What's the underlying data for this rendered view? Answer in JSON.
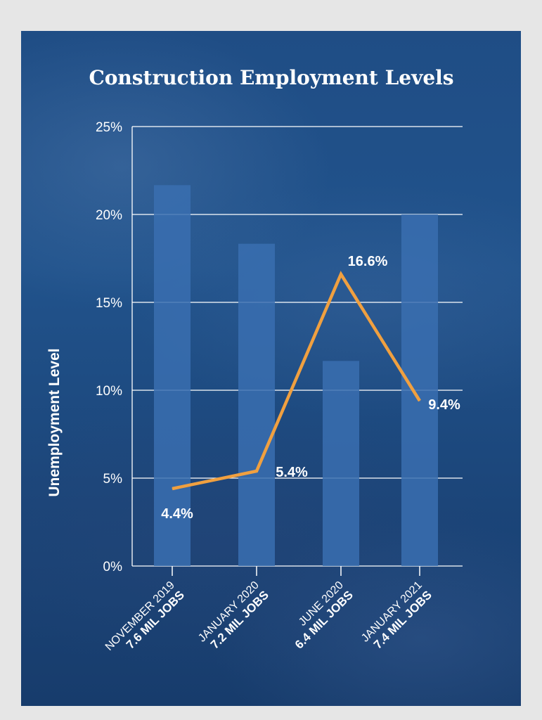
{
  "chart_data": {
    "type": "bar",
    "title": "Construction Employment Levels",
    "ylabel": "Unemployment Level",
    "ylim": [
      0,
      25
    ],
    "yticks": [
      "0%",
      "5%",
      "10%",
      "15%",
      "20%",
      "25%"
    ],
    "grid": true,
    "categories": [
      {
        "period": "NOVEMBER 2019",
        "jobs": "7.6 MIL JOBS"
      },
      {
        "period": "JANUARY 2020",
        "jobs": "7.2 MIL JOBS"
      },
      {
        "period": "JUNE 2020",
        "jobs": "6.4 MIL JOBS"
      },
      {
        "period": "JANUARY 2021",
        "jobs": "7.4 MIL JOBS"
      }
    ],
    "bars": {
      "values": [
        7.6,
        7.2,
        6.4,
        7.4
      ],
      "axis_min": 5.0,
      "axis_max": 8.0,
      "color": "#3a6fb0"
    },
    "line": {
      "values": [
        4.4,
        5.4,
        16.6,
        9.4
      ],
      "labels": [
        "4.4%",
        "5.4%",
        "16.6%",
        "9.4%"
      ],
      "color": "#f0a040"
    },
    "colors": {
      "background": "#1d4a80",
      "gridline": "#ffffff",
      "text": "#ffffff"
    }
  }
}
